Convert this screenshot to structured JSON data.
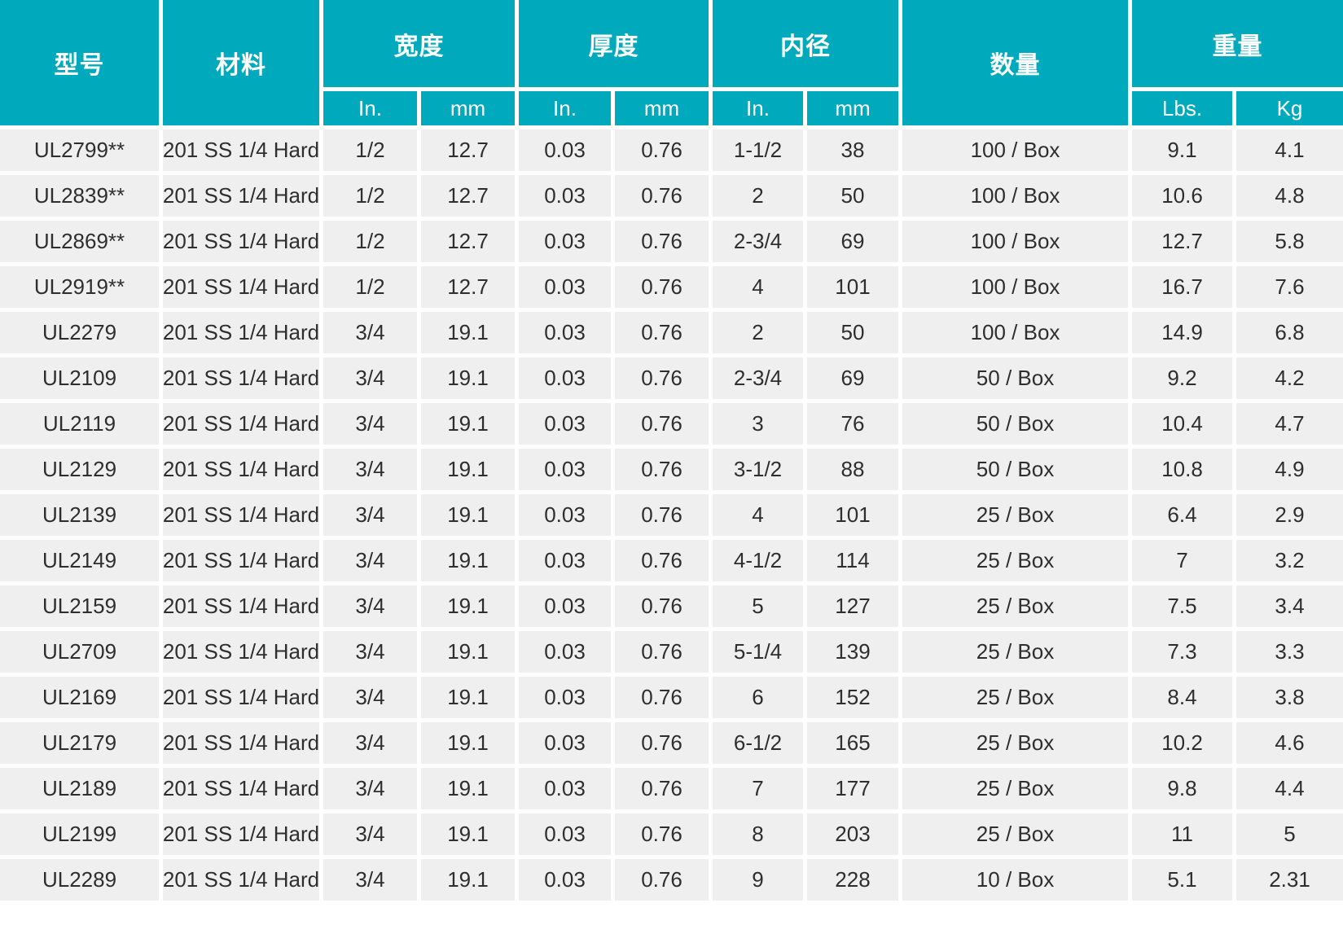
{
  "table": {
    "columns": {
      "model": "型号",
      "material": "材料",
      "width": "宽度",
      "thickness": "厚度",
      "inner_diameter": "内径",
      "quantity": "数量",
      "weight": "重量",
      "unit_in": "In.",
      "unit_mm": "mm",
      "unit_lbs": "Lbs.",
      "unit_kg": "Kg"
    },
    "fields": [
      "model",
      "material",
      "width_in",
      "width_mm",
      "thickness_in",
      "thickness_mm",
      "inner_diameter_in",
      "inner_diameter_mm",
      "quantity",
      "weight_lbs",
      "weight_kg"
    ],
    "rows": [
      [
        "UL2799**",
        "201 SS 1/4 Hard",
        "1/2",
        "12.7",
        "0.03",
        "0.76",
        "1-1/2",
        "38",
        "100 / Box",
        "9.1",
        "4.1"
      ],
      [
        "UL2839**",
        "201 SS 1/4 Hard",
        "1/2",
        "12.7",
        "0.03",
        "0.76",
        "2",
        "50",
        "100 / Box",
        "10.6",
        "4.8"
      ],
      [
        "UL2869**",
        "201 SS 1/4 Hard",
        "1/2",
        "12.7",
        "0.03",
        "0.76",
        "2-3/4",
        "69",
        "100 / Box",
        "12.7",
        "5.8"
      ],
      [
        "UL2919**",
        "201 SS 1/4 Hard",
        "1/2",
        "12.7",
        "0.03",
        "0.76",
        "4",
        "101",
        "100 / Box",
        "16.7",
        "7.6"
      ],
      [
        "UL2279",
        "201 SS 1/4 Hard",
        "3/4",
        "19.1",
        "0.03",
        "0.76",
        "2",
        "50",
        "100 / Box",
        "14.9",
        "6.8"
      ],
      [
        "UL2109",
        "201 SS 1/4 Hard",
        "3/4",
        "19.1",
        "0.03",
        "0.76",
        "2-3/4",
        "69",
        "50 / Box",
        "9.2",
        "4.2"
      ],
      [
        "UL2119",
        "201 SS 1/4 Hard",
        "3/4",
        "19.1",
        "0.03",
        "0.76",
        "3",
        "76",
        "50 / Box",
        "10.4",
        "4.7"
      ],
      [
        "UL2129",
        "201 SS 1/4 Hard",
        "3/4",
        "19.1",
        "0.03",
        "0.76",
        "3-1/2",
        "88",
        "50 / Box",
        "10.8",
        "4.9"
      ],
      [
        "UL2139",
        "201 SS 1/4 Hard",
        "3/4",
        "19.1",
        "0.03",
        "0.76",
        "4",
        "101",
        "25 / Box",
        "6.4",
        "2.9"
      ],
      [
        "UL2149",
        "201 SS 1/4 Hard",
        "3/4",
        "19.1",
        "0.03",
        "0.76",
        "4-1/2",
        "114",
        "25 / Box",
        "7",
        "3.2"
      ],
      [
        "UL2159",
        "201 SS 1/4 Hard",
        "3/4",
        "19.1",
        "0.03",
        "0.76",
        "5",
        "127",
        "25 / Box",
        "7.5",
        "3.4"
      ],
      [
        "UL2709",
        "201 SS 1/4 Hard",
        "3/4",
        "19.1",
        "0.03",
        "0.76",
        "5-1/4",
        "139",
        "25 / Box",
        "7.3",
        "3.3"
      ],
      [
        "UL2169",
        "201 SS 1/4 Hard",
        "3/4",
        "19.1",
        "0.03",
        "0.76",
        "6",
        "152",
        "25 / Box",
        "8.4",
        "3.8"
      ],
      [
        "UL2179",
        "201 SS 1/4 Hard",
        "3/4",
        "19.1",
        "0.03",
        "0.76",
        "6-1/2",
        "165",
        "25 / Box",
        "10.2",
        "4.6"
      ],
      [
        "UL2189",
        "201 SS 1/4 Hard",
        "3/4",
        "19.1",
        "0.03",
        "0.76",
        "7",
        "177",
        "25 / Box",
        "9.8",
        "4.4"
      ],
      [
        "UL2199",
        "201 SS 1/4 Hard",
        "3/4",
        "19.1",
        "0.03",
        "0.76",
        "8",
        "203",
        "25 / Box",
        "11",
        "5"
      ],
      [
        "UL2289",
        "201 SS 1/4 Hard",
        "3/4",
        "19.1",
        "0.03",
        "0.76",
        "9",
        "228",
        "10 / Box",
        "5.1",
        "2.31"
      ]
    ]
  },
  "colors": {
    "header_bg": "#00a9bb",
    "header_text": "#ffffff",
    "row_bg": "#efefef",
    "body_text": "#2e2e2e",
    "gap": "#ffffff"
  },
  "chart_data": {
    "type": "table",
    "title": "",
    "column_groups": [
      "型号",
      "材料",
      "宽度",
      "厚度",
      "内径",
      "数量",
      "重量"
    ],
    "sub_columns": [
      "In.",
      "mm",
      "In.",
      "mm",
      "In.",
      "mm",
      "Lbs.",
      "Kg"
    ],
    "rows": [
      [
        "UL2799**",
        "201 SS 1/4 Hard",
        "1/2",
        "12.7",
        "0.03",
        "0.76",
        "1-1/2",
        "38",
        "100 / Box",
        "9.1",
        "4.1"
      ],
      [
        "UL2839**",
        "201 SS 1/4 Hard",
        "1/2",
        "12.7",
        "0.03",
        "0.76",
        "2",
        "50",
        "100 / Box",
        "10.6",
        "4.8"
      ],
      [
        "UL2869**",
        "201 SS 1/4 Hard",
        "1/2",
        "12.7",
        "0.03",
        "0.76",
        "2-3/4",
        "69",
        "100 / Box",
        "12.7",
        "5.8"
      ],
      [
        "UL2919**",
        "201 SS 1/4 Hard",
        "1/2",
        "12.7",
        "0.03",
        "0.76",
        "4",
        "101",
        "100 / Box",
        "16.7",
        "7.6"
      ],
      [
        "UL2279",
        "201 SS 1/4 Hard",
        "3/4",
        "19.1",
        "0.03",
        "0.76",
        "2",
        "50",
        "100 / Box",
        "14.9",
        "6.8"
      ],
      [
        "UL2109",
        "201 SS 1/4 Hard",
        "3/4",
        "19.1",
        "0.03",
        "0.76",
        "2-3/4",
        "69",
        "50 / Box",
        "9.2",
        "4.2"
      ],
      [
        "UL2119",
        "201 SS 1/4 Hard",
        "3/4",
        "19.1",
        "0.03",
        "0.76",
        "3",
        "76",
        "50 / Box",
        "10.4",
        "4.7"
      ],
      [
        "UL2129",
        "201 SS 1/4 Hard",
        "3/4",
        "19.1",
        "0.03",
        "0.76",
        "3-1/2",
        "88",
        "50 / Box",
        "10.8",
        "4.9"
      ],
      [
        "UL2139",
        "201 SS 1/4 Hard",
        "3/4",
        "19.1",
        "0.03",
        "0.76",
        "4",
        "101",
        "25 / Box",
        "6.4",
        "2.9"
      ],
      [
        "UL2149",
        "201 SS 1/4 Hard",
        "3/4",
        "19.1",
        "0.03",
        "0.76",
        "4-1/2",
        "114",
        "25 / Box",
        "7",
        "3.2"
      ],
      [
        "UL2159",
        "201 SS 1/4 Hard",
        "3/4",
        "19.1",
        "0.03",
        "0.76",
        "5",
        "127",
        "25 / Box",
        "7.5",
        "3.4"
      ],
      [
        "UL2709",
        "201 SS 1/4 Hard",
        "3/4",
        "19.1",
        "0.03",
        "0.76",
        "5-1/4",
        "139",
        "25 / Box",
        "7.3",
        "3.3"
      ],
      [
        "UL2169",
        "201 SS 1/4 Hard",
        "3/4",
        "19.1",
        "0.03",
        "0.76",
        "6",
        "152",
        "25 / Box",
        "8.4",
        "3.8"
      ],
      [
        "UL2179",
        "201 SS 1/4 Hard",
        "3/4",
        "19.1",
        "0.03",
        "0.76",
        "6-1/2",
        "165",
        "25 / Box",
        "10.2",
        "4.6"
      ],
      [
        "UL2189",
        "201 SS 1/4 Hard",
        "3/4",
        "19.1",
        "0.03",
        "0.76",
        "7",
        "177",
        "25 / Box",
        "9.8",
        "4.4"
      ],
      [
        "UL2199",
        "201 SS 1/4 Hard",
        "3/4",
        "19.1",
        "0.03",
        "0.76",
        "8",
        "203",
        "25 / Box",
        "11",
        "5"
      ],
      [
        "UL2289",
        "201 SS 1/4 Hard",
        "3/4",
        "19.1",
        "0.03",
        "0.76",
        "9",
        "228",
        "10 / Box",
        "5.1",
        "2.31"
      ]
    ]
  }
}
